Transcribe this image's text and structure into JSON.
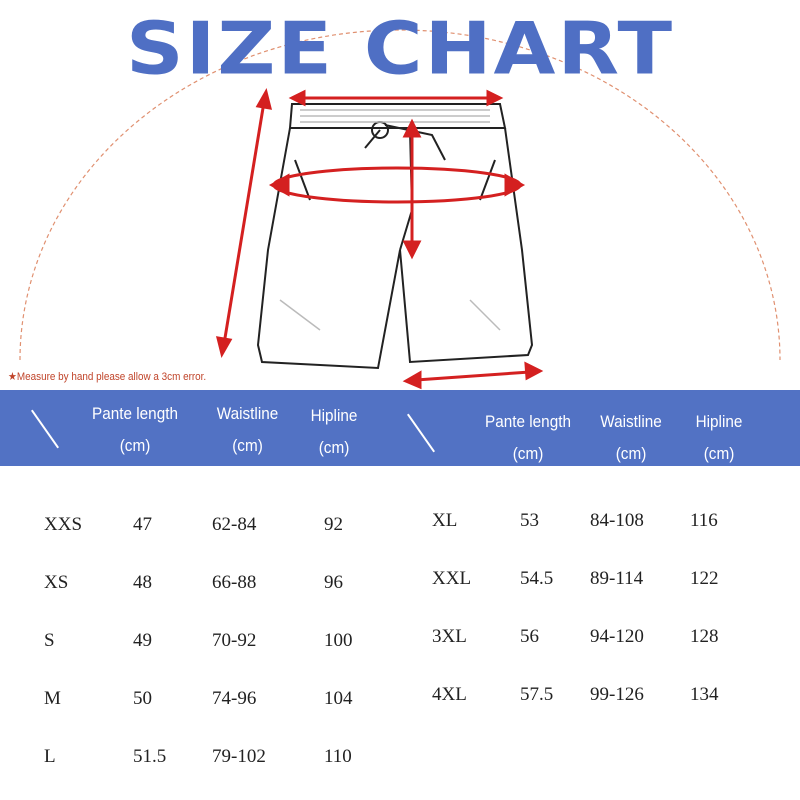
{
  "title": "SIZE CHART",
  "note": "★Measure by hand please allow a 3cm error.",
  "colors": {
    "brand_blue": "#5272c4",
    "arrow_red": "#d42020",
    "note": "#c0442a"
  },
  "headers": [
    {
      "name": "Pante length",
      "unit": "(cm)"
    },
    {
      "name": "Waistline",
      "unit": "(cm)"
    },
    {
      "name": "Hipline",
      "unit": "(cm)"
    }
  ],
  "left_rows": [
    [
      "XXS",
      "47",
      "62-84",
      "92"
    ],
    [
      "XS",
      "48",
      "66-88",
      "96"
    ],
    [
      "S",
      "49",
      "70-92",
      "100"
    ],
    [
      "M",
      "50",
      "74-96",
      "104"
    ],
    [
      "L",
      "51.5",
      "79-102",
      "110"
    ]
  ],
  "right_rows": [
    [
      "XL",
      "53",
      "84-108",
      "116"
    ],
    [
      "XXL",
      "54.5",
      "89-114",
      "122"
    ],
    [
      "3XL",
      "56",
      "94-120",
      "128"
    ],
    [
      "4XL",
      "57.5",
      "99-126",
      "134"
    ]
  ]
}
